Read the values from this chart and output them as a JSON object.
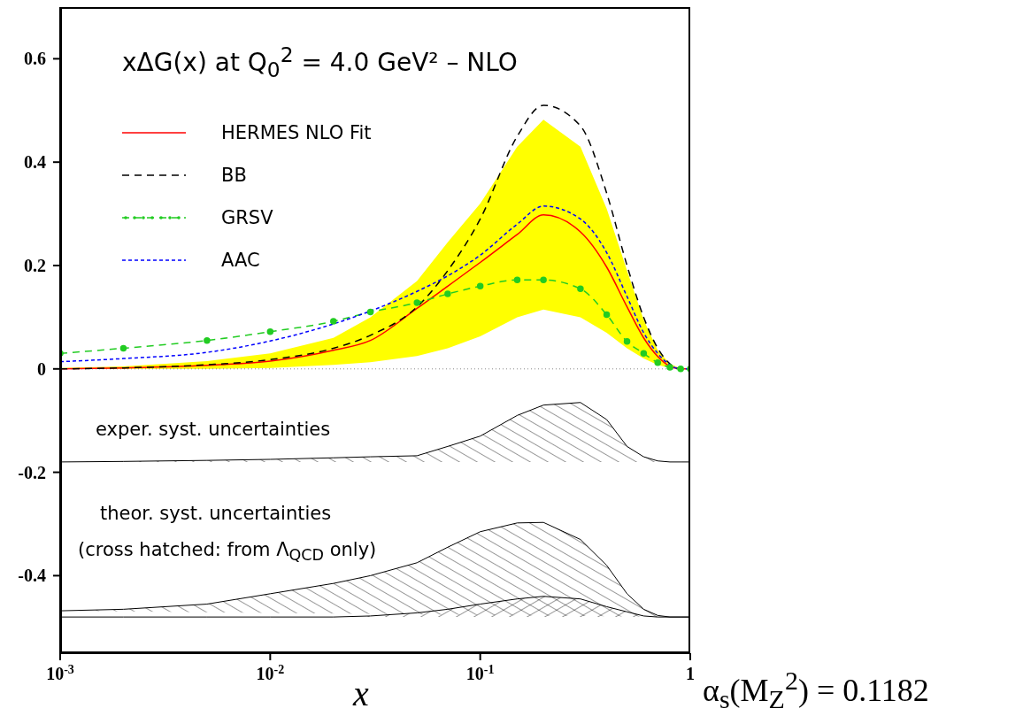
{
  "chart_data": {
    "type": "line",
    "title": "xΔG(x) at Q$_{0}$$^{2}$ = 4.0 GeV² – NLO",
    "xlabel": "x",
    "x": [
      0.001,
      0.002,
      0.005,
      0.01,
      0.02,
      0.03,
      0.05,
      0.07,
      0.1,
      0.15,
      0.2,
      0.3,
      0.4,
      0.5,
      0.6,
      0.7,
      0.8,
      0.9,
      1.0
    ],
    "series": [
      {
        "name": "HERMES NLO Fit",
        "color": "#ff0000",
        "line_style": "solid",
        "values": [
          0,
          0.002,
          0.007,
          0.015,
          0.036,
          0.055,
          0.117,
          0.16,
          0.206,
          0.26,
          0.298,
          0.265,
          0.197,
          0.12,
          0.06,
          0.024,
          0.005,
          0,
          0
        ],
        "lower": [
          0,
          0,
          0,
          0.002,
          0.008,
          0.013,
          0.025,
          0.04,
          0.063,
          0.1,
          0.115,
          0.1,
          0.07,
          0.04,
          0.02,
          0.008,
          0.002,
          0,
          0
        ],
        "upper": [
          0.002,
          0.005,
          0.015,
          0.03,
          0.06,
          0.1,
          0.17,
          0.245,
          0.32,
          0.43,
          0.482,
          0.43,
          0.31,
          0.19,
          0.095,
          0.036,
          0.01,
          0,
          0
        ]
      },
      {
        "name": "BB",
        "color": "#000000",
        "line_style": "dashed",
        "values": [
          0,
          0.002,
          0.008,
          0.018,
          0.04,
          0.065,
          0.12,
          0.19,
          0.29,
          0.45,
          0.51,
          0.47,
          0.34,
          0.2,
          0.1,
          0.04,
          0.01,
          0,
          0
        ]
      },
      {
        "name": "GRSV",
        "color": "#22cc22",
        "line_style": "dashed",
        "marker": "circle",
        "values": [
          0.03,
          0.04,
          0.055,
          0.072,
          0.092,
          0.11,
          0.128,
          0.145,
          0.16,
          0.172,
          0.172,
          0.155,
          0.105,
          0.053,
          0.03,
          0.012,
          0.003,
          0,
          0
        ]
      },
      {
        "name": "AAC",
        "color": "#0000ff",
        "line_style": "dashed",
        "values": [
          0.014,
          0.02,
          0.032,
          0.054,
          0.087,
          0.112,
          0.15,
          0.18,
          0.22,
          0.28,
          0.315,
          0.29,
          0.225,
          0.14,
          0.07,
          0.03,
          0.008,
          0,
          0
        ]
      },
      {
        "type": "area",
        "color": "#000000",
        "values": [
          -0.18,
          -0.179,
          -0.177,
          -0.175,
          -0.172,
          -0.17,
          -0.168,
          -0.15,
          -0.13,
          -0.09,
          -0.07,
          -0.065,
          -0.098,
          -0.15,
          -0.17,
          -0.178,
          -0.18,
          -0.18,
          -0.18
        ]
      },
      {
        "type": "area",
        "color": "#000000",
        "values": [
          -0.468,
          -0.465,
          -0.455,
          -0.435,
          -0.415,
          -0.4,
          -0.375,
          -0.345,
          -0.315,
          -0.298,
          -0.297,
          -0.33,
          -0.38,
          -0.435,
          -0.465,
          -0.477,
          -0.48,
          -0.48,
          -0.48
        ]
      },
      {
        "type": "area",
        "color": "#000000",
        "values": [
          -0.48,
          -0.48,
          -0.48,
          -0.48,
          -0.48,
          -0.478,
          -0.472,
          -0.465,
          -0.455,
          -0.445,
          -0.44,
          -0.445,
          -0.46,
          -0.47,
          -0.478,
          -0.48,
          -0.48,
          -0.48,
          -0.48
        ]
      }
    ],
    "log": "x",
    "xlim": [
      0.001,
      1
    ],
    "xticks": [
      {
        "value": 0.001,
        "label": "10$^{-3}$"
      },
      {
        "value": 0.01,
        "label": "10$^{-2}$"
      },
      {
        "value": 0.1,
        "label": "10$^{-1}$"
      },
      1
    ],
    "ylim": [
      -0.55,
      0.7
    ],
    "yticks": [
      -0.4,
      -0.2,
      0,
      0.2,
      0.4,
      0.6
    ],
    "ref_lines": [
      {
        "axis": "y",
        "value": 0,
        "line_style": "dotted",
        "color": "#888888"
      }
    ],
    "annotations": [
      "exper. syst. uncertainties",
      "theor. syst. uncertainties",
      "(cross hatched: from Λ$_{QCD}$ only)",
      "α$_{s}$(M$_{Z}$$^{2}$) = 0.1182"
    ],
    "legend": "top left",
    "grid": false
  }
}
